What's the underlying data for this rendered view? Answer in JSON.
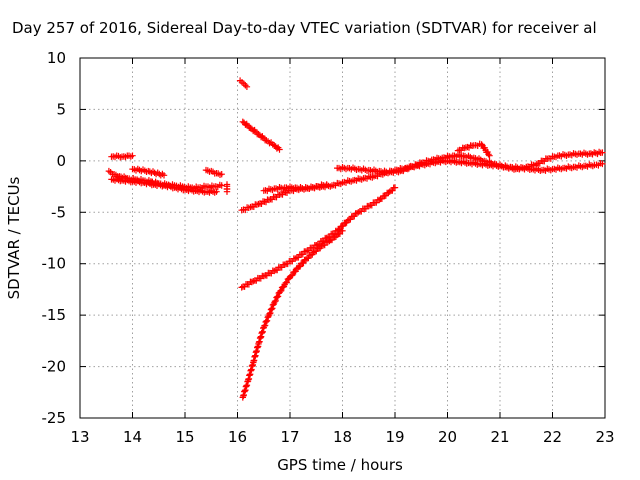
{
  "chart_data": {
    "type": "scatter",
    "title": "Day 257 of 2016, Sidereal Day-to-day VTEC variation (SDTVAR) for receiver al",
    "xlabel": "GPS time / hours",
    "ylabel": "SDTVAR / TECUs",
    "xlim": [
      13,
      23
    ],
    "ylim": [
      -25,
      10
    ],
    "xticks": [
      13,
      14,
      15,
      16,
      17,
      18,
      19,
      20,
      21,
      22,
      23
    ],
    "yticks": [
      10,
      5,
      0,
      -5,
      -10,
      -15,
      -20,
      -25
    ],
    "grid": true,
    "legend": "none",
    "marker": "plus",
    "color": "#ff0000",
    "series": [
      {
        "x": [
          13.6,
          13.7,
          13.8,
          13.9,
          14.0
        ],
        "y": [
          0.4,
          0.5,
          0.4,
          0.5,
          0.5
        ]
      },
      {
        "x": [
          13.55,
          13.65,
          13.75,
          13.9,
          14.05,
          14.2,
          14.35,
          14.5,
          14.65,
          14.8,
          14.95,
          15.1,
          15.25,
          15.4,
          15.55,
          15.7
        ],
        "y": [
          -1.0,
          -1.3,
          -1.5,
          -1.7,
          -1.8,
          -1.9,
          -2.0,
          -2.2,
          -2.3,
          -2.4,
          -2.5,
          -2.6,
          -2.6,
          -2.5,
          -2.5,
          -2.4
        ]
      },
      {
        "x": [
          13.6,
          13.8,
          14.0,
          14.2,
          14.4,
          14.6,
          14.8,
          15.0,
          15.2,
          15.4,
          15.6
        ],
        "y": [
          -1.8,
          -1.9,
          -2.0,
          -2.1,
          -2.3,
          -2.4,
          -2.6,
          -2.8,
          -2.9,
          -3.0,
          -3.0
        ]
      },
      {
        "x": [
          14.0,
          14.3,
          14.6
        ],
        "y": [
          -0.8,
          -1.0,
          -1.4
        ]
      },
      {
        "x": [
          15.4,
          15.5,
          15.6,
          15.7
        ],
        "y": [
          -0.9,
          -1.0,
          -1.2,
          -1.3
        ]
      },
      {
        "x": [
          15.8,
          15.8
        ],
        "y": [
          -2.3,
          -3.0
        ]
      },
      {
        "x": [
          16.05,
          16.12,
          16.18
        ],
        "y": [
          7.8,
          7.5,
          7.2
        ]
      },
      {
        "x": [
          16.1,
          16.25,
          16.4,
          16.55,
          16.7,
          16.8
        ],
        "y": [
          3.8,
          3.2,
          2.6,
          2.0,
          1.5,
          1.1
        ]
      },
      {
        "x": [
          16.08,
          16.25,
          16.4,
          16.6,
          16.8,
          17.0,
          17.2,
          17.4,
          17.6,
          17.8,
          18.0,
          18.2,
          18.4,
          18.6,
          18.8,
          19.0,
          19.2,
          19.4,
          19.6,
          19.8,
          20.0,
          20.2,
          20.4,
          20.6,
          20.8,
          21.0,
          21.2,
          21.4,
          21.6,
          21.8,
          22.0,
          22.2,
          22.4,
          22.6,
          22.8,
          22.95
        ],
        "y": [
          -4.8,
          -4.5,
          -4.2,
          -3.8,
          -3.3,
          -2.9,
          -2.7,
          -2.6,
          -2.5,
          -2.4,
          -2.1,
          -1.9,
          -1.7,
          -1.5,
          -1.2,
          -0.9,
          -0.7,
          -0.5,
          -0.3,
          -0.1,
          0.0,
          -0.1,
          -0.2,
          -0.3,
          -0.4,
          -0.5,
          -0.6,
          -0.7,
          -0.8,
          -0.9,
          -0.8,
          -0.7,
          -0.6,
          -0.5,
          -0.4,
          -0.3
        ]
      },
      {
        "x": [
          16.5,
          16.7,
          16.9,
          17.1,
          17.3,
          17.5,
          17.7
        ],
        "y": [
          -2.9,
          -2.7,
          -2.6,
          -2.6,
          -2.7,
          -2.5,
          -2.3
        ]
      },
      {
        "x": [
          17.9,
          18.1,
          18.3,
          18.5,
          18.7,
          18.9,
          19.1,
          19.3,
          19.5,
          19.7,
          19.9,
          20.1,
          20.3,
          20.5,
          20.7,
          20.9,
          21.1,
          21.3,
          21.5,
          21.7,
          21.9,
          22.1,
          22.3,
          22.5,
          22.7,
          22.95
        ],
        "y": [
          -0.7,
          -0.7,
          -0.8,
          -0.9,
          -1.0,
          -1.1,
          -1.0,
          -0.6,
          -0.2,
          0.1,
          0.3,
          0.5,
          0.5,
          0.3,
          0.0,
          -0.3,
          -0.6,
          -0.8,
          -0.6,
          -0.3,
          0.2,
          0.5,
          0.6,
          0.7,
          0.7,
          0.8
        ]
      },
      {
        "x": [
          20.2,
          20.35,
          20.5,
          20.65,
          20.8
        ],
        "y": [
          1.0,
          1.3,
          1.5,
          1.6,
          0.5
        ]
      },
      {
        "x": [
          16.08,
          16.3,
          16.5,
          16.7,
          16.9,
          17.1,
          17.3,
          17.5,
          17.7,
          17.9,
          18.1,
          18.3,
          18.5,
          18.7,
          18.9,
          19.0
        ],
        "y": [
          -12.3,
          -11.7,
          -11.2,
          -10.7,
          -10.1,
          -9.5,
          -8.8,
          -8.2,
          -7.5,
          -6.8,
          -5.8,
          -5.0,
          -4.4,
          -3.8,
          -3.0,
          -2.6
        ]
      },
      {
        "x": [
          16.1,
          16.2,
          16.3,
          16.4,
          16.5,
          16.6,
          16.7,
          16.8,
          16.9,
          17.0,
          17.15,
          17.3,
          17.45,
          17.6,
          17.75,
          17.9,
          18.0
        ],
        "y": [
          -23.0,
          -21.4,
          -19.6,
          -17.8,
          -16.2,
          -15.0,
          -13.8,
          -12.8,
          -12.0,
          -11.3,
          -10.4,
          -9.6,
          -8.9,
          -8.3,
          -7.8,
          -7.2,
          -6.8
        ]
      }
    ]
  }
}
